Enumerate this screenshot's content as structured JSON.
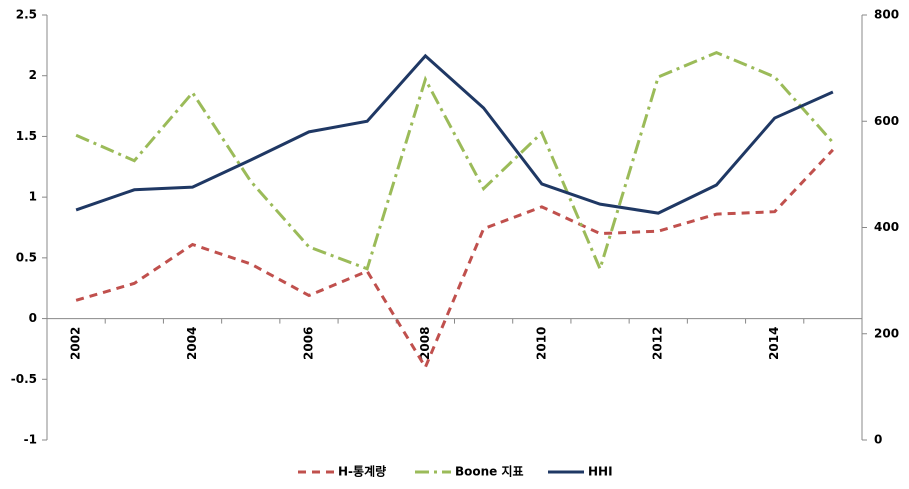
{
  "chart_data": {
    "type": "line",
    "categories": [
      "2002",
      null,
      "2004",
      null,
      "2006",
      null,
      "2008",
      null,
      "2010",
      null,
      "2012",
      null,
      "2014",
      null
    ],
    "series": [
      {
        "name": "H-통계량",
        "color": "#c0504d",
        "dash": "8,6",
        "values": [
          0.15,
          0.29,
          0.61,
          0.45,
          0.19,
          0.39,
          -0.4,
          0.74,
          0.92,
          0.7,
          0.72,
          0.86,
          0.88,
          1.39
        ]
      },
      {
        "name": "Boone 지표",
        "color": "#9bbb59",
        "dash": "14,5,3,5",
        "values": [
          1.51,
          1.3,
          1.86,
          1.13,
          0.59,
          0.41,
          1.97,
          1.07,
          1.53,
          0.41,
          1.99,
          2.19,
          1.99,
          1.45
        ]
      },
      {
        "name": "HHI",
        "color": "#1f3864",
        "axis": "y2",
        "values": [
          433,
          471,
          476,
          527,
          580,
          600,
          723,
          625,
          482,
          444,
          427,
          480,
          606,
          655
        ]
      }
    ],
    "ylim": [
      -1,
      2.5
    ],
    "yticks": [
      -1,
      -0.5,
      0,
      0.5,
      1,
      1.5,
      2,
      2.5
    ],
    "y2lim": [
      0,
      800
    ],
    "y2ticks": [
      0,
      200,
      400,
      600,
      800
    ],
    "legend": "bottom"
  }
}
